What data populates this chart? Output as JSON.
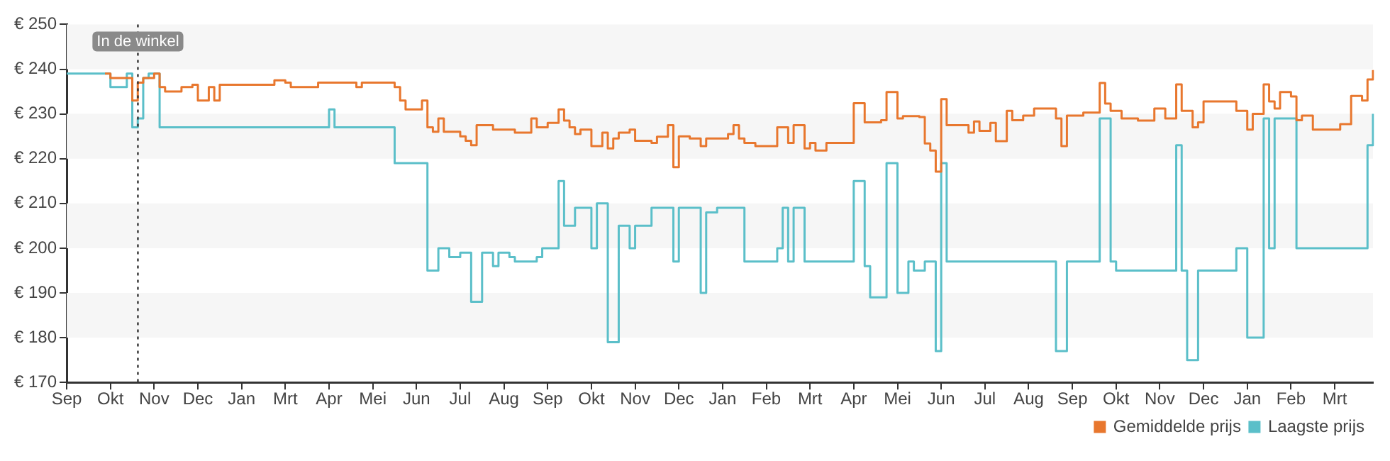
{
  "chart_data": {
    "type": "step",
    "ylim": [
      170,
      250
    ],
    "categories": [
      "Sep",
      null,
      null,
      null,
      null,
      null,
      null,
      null,
      "Okt",
      null,
      null,
      null,
      null,
      null,
      null,
      null,
      "Nov",
      null,
      null,
      null,
      null,
      null,
      null,
      null,
      "Dec",
      null,
      null,
      null,
      null,
      null,
      null,
      null,
      "Jan",
      null,
      null,
      null,
      null,
      null,
      null,
      null,
      "Mrt",
      null,
      null,
      null,
      null,
      null,
      null,
      null,
      "Apr",
      null,
      null,
      null,
      null,
      null,
      null,
      null,
      "Mei",
      null,
      null,
      null,
      null,
      null,
      null,
      null,
      "Jun",
      null,
      null,
      null,
      null,
      null,
      null,
      null,
      "Jul",
      null,
      null,
      null,
      null,
      null,
      null,
      null,
      "Aug",
      null,
      null,
      null,
      null,
      null,
      null,
      null,
      "Sep",
      null,
      null,
      null,
      null,
      null,
      null,
      null,
      "Okt",
      null,
      null,
      null,
      null,
      null,
      null,
      null,
      "Nov",
      null,
      null,
      null,
      null,
      null,
      null,
      null,
      "Dec",
      null,
      null,
      null,
      null,
      null,
      null,
      null,
      "Jan",
      null,
      null,
      null,
      null,
      null,
      null,
      null,
      "Feb",
      null,
      null,
      null,
      null,
      null,
      null,
      null,
      "Mrt",
      null,
      null,
      null,
      null,
      null,
      null,
      null,
      "Apr",
      null,
      null,
      null,
      null,
      null,
      null,
      null,
      "Mei",
      null,
      null,
      null,
      null,
      null,
      null,
      null,
      "Jun",
      null,
      null,
      null,
      null,
      null,
      null,
      null,
      "Jul",
      null,
      null,
      null,
      null,
      null,
      null,
      null,
      "Aug",
      null,
      null,
      null,
      null,
      null,
      null,
      null,
      "Sep",
      null,
      null,
      null,
      null,
      null,
      null,
      null,
      "Okt",
      null,
      null,
      null,
      null,
      null,
      null,
      null,
      "Nov",
      null,
      null,
      null,
      null,
      null,
      null,
      null,
      "Dec",
      null,
      null,
      null,
      null,
      null,
      null,
      null,
      "Jan",
      null,
      null,
      null,
      null,
      null,
      null,
      null,
      "Feb",
      null,
      null,
      null,
      null,
      null,
      null,
      null,
      "Mrt",
      null,
      null,
      null,
      null,
      null,
      null,
      null
    ],
    "yticks": [
      {
        "value": 170,
        "label": "€ 170"
      },
      {
        "value": 180,
        "label": "€ 180"
      },
      {
        "value": 190,
        "label": "€ 190"
      },
      {
        "value": 200,
        "label": "€ 200"
      },
      {
        "value": 210,
        "label": "€ 210"
      },
      {
        "value": 220,
        "label": "€ 220"
      },
      {
        "value": 230,
        "label": "€ 230"
      },
      {
        "value": 240,
        "label": "€ 240"
      },
      {
        "value": 250,
        "label": "€ 250"
      }
    ],
    "legend": "bottom right",
    "marker": "none",
    "line_style": "solid",
    "bands": [
      {
        "axis": "y",
        "from": 240,
        "to": 250,
        "color": "#f6f6f6"
      },
      {
        "axis": "y",
        "from": 220,
        "to": 230,
        "color": "#f6f6f6"
      },
      {
        "axis": "y",
        "from": 200,
        "to": 210,
        "color": "#f6f6f6"
      },
      {
        "axis": "y",
        "from": 180,
        "to": 190,
        "color": "#f6f6f6"
      }
    ],
    "annotations": [
      "In de winkel"
    ],
    "series": [
      {
        "name": "Gemiddelde prijs",
        "color": "#e8772e",
        "values": [
          null,
          null,
          null,
          null,
          null,
          null,
          null,
          239,
          238,
          238,
          238,
          238,
          233,
          237,
          238,
          238,
          239,
          236,
          235,
          235,
          235,
          236,
          236,
          236.5,
          233,
          233,
          236,
          233,
          236.5,
          236.5,
          236.5,
          236.5,
          236.5,
          236.5,
          236.5,
          236.5,
          236.5,
          236.5,
          237.5,
          237.5,
          237,
          236,
          236,
          236,
          236,
          236,
          237,
          237,
          237,
          237,
          237,
          237,
          237,
          236,
          237,
          237,
          237,
          237,
          237,
          237,
          236,
          233,
          231,
          231,
          231,
          233,
          227,
          226,
          229,
          226,
          226,
          226,
          225,
          224,
          223,
          227.5,
          227.5,
          227.5,
          226.5,
          226.5,
          226.5,
          226.5,
          225.8,
          225.8,
          225.8,
          229,
          227,
          227,
          228,
          228,
          231,
          228.5,
          227,
          225.5,
          226.5,
          226.5,
          222.8,
          222.8,
          225.8,
          222.3,
          224.5,
          225.8,
          225.8,
          226.5,
          224,
          224,
          224,
          223.5,
          224.9,
          224.9,
          227.5,
          218.1,
          225,
          225,
          224.5,
          224.5,
          222.8,
          224.5,
          224.5,
          224.5,
          224.5,
          225.5,
          227.5,
          224.5,
          223.5,
          223.5,
          222.8,
          222.8,
          222.8,
          222.8,
          227,
          227,
          223.5,
          227.5,
          227.5,
          222.3,
          223.5,
          221.8,
          221.8,
          223.5,
          223.5,
          223.5,
          223.5,
          223.5,
          232.4,
          232.4,
          228.1,
          228.1,
          228.1,
          228.6,
          234.9,
          234.9,
          229,
          229.5,
          229.5,
          229.5,
          229.3,
          223.4,
          221.8,
          217.1,
          233.3,
          227.5,
          227.5,
          227.5,
          227.5,
          225.8,
          228.3,
          226.2,
          226.2,
          228,
          223.9,
          223.9,
          230.7,
          228.6,
          228.6,
          229.6,
          229.6,
          231.2,
          231.2,
          231.2,
          231.2,
          229,
          222.8,
          229.6,
          229.6,
          229.6,
          230.3,
          230.3,
          230.3,
          236.9,
          232.3,
          230.7,
          230.7,
          229,
          229,
          229,
          228.5,
          228.5,
          228.5,
          231.2,
          231.2,
          229,
          229,
          236.6,
          230.7,
          230.7,
          227,
          228.1,
          232.8,
          232.8,
          232.8,
          232.8,
          232.8,
          232.8,
          230.7,
          230.7,
          226.5,
          230,
          230,
          236.6,
          232.8,
          231.2,
          234.9,
          234.9,
          233.9,
          228.6,
          229.6,
          229.6,
          226.5,
          226.5,
          226.5,
          226.5,
          226.5,
          227.7,
          227.7,
          234,
          234,
          233,
          237.7,
          239.8
        ]
      },
      {
        "name": "Laagste prijs",
        "color": "#5bbfc9",
        "values": [
          239,
          239,
          239,
          239,
          239,
          239,
          239,
          239,
          236,
          236,
          236,
          239,
          227,
          229,
          238,
          239,
          239,
          227,
          227,
          227,
          227,
          227,
          227,
          227,
          227,
          227,
          227,
          227,
          227,
          227,
          227,
          227,
          227,
          227,
          227,
          227,
          227,
          227,
          227,
          227,
          227,
          227,
          227,
          227,
          227,
          227,
          227,
          227,
          231,
          227,
          227,
          227,
          227,
          227,
          227,
          227,
          227,
          227,
          227,
          227,
          219,
          219,
          219,
          219,
          219,
          219,
          195,
          195,
          200,
          200,
          198,
          198,
          199,
          199,
          188,
          188,
          199,
          199,
          196,
          199,
          199,
          198,
          197,
          197,
          197,
          197,
          198,
          200,
          200,
          200,
          215,
          205,
          205,
          209,
          209,
          209,
          200,
          210,
          210,
          179,
          179,
          205,
          205,
          200,
          205,
          205,
          205,
          209,
          209,
          209,
          209,
          197,
          209,
          209,
          209,
          209,
          190,
          208,
          208,
          209,
          209,
          209,
          209,
          209,
          197,
          197,
          197,
          197,
          197,
          197,
          200,
          209,
          197,
          209,
          209,
          197,
          197,
          197,
          197,
          197,
          197,
          197,
          197,
          197,
          215,
          215,
          196,
          189,
          189,
          189,
          219,
          219,
          190,
          190,
          197,
          195,
          195,
          197,
          197,
          177,
          219,
          197,
          197,
          197,
          197,
          197,
          197,
          197,
          197,
          197,
          197,
          197,
          197,
          197,
          197,
          197,
          197,
          197,
          197,
          197,
          197,
          177,
          177,
          197,
          197,
          197,
          197,
          197,
          197,
          229,
          229,
          197,
          195,
          195,
          195,
          195,
          195,
          195,
          195,
          195,
          195,
          195,
          195,
          223,
          195,
          175,
          175,
          195,
          195,
          195,
          195,
          195,
          195,
          195,
          200,
          200,
          180,
          180,
          180,
          229,
          200,
          229,
          229,
          229,
          229,
          200,
          200,
          200,
          200,
          200,
          200,
          200,
          200,
          200,
          200,
          200,
          200,
          200,
          223,
          230
        ]
      }
    ]
  }
}
